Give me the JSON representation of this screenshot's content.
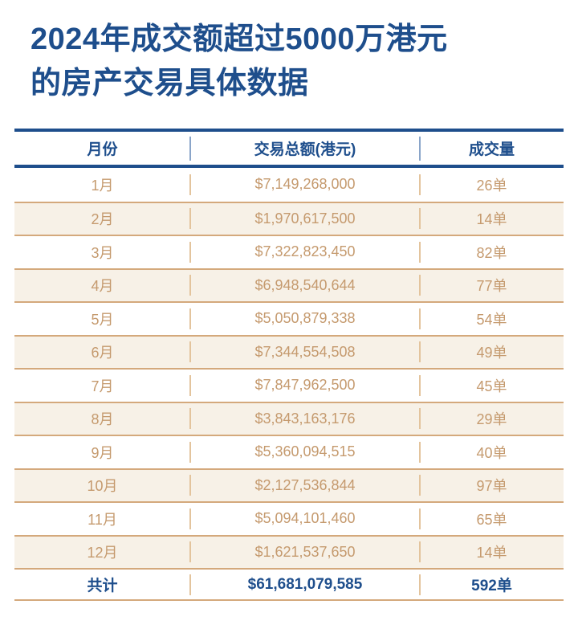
{
  "title": {
    "line1": "2024年成交额超过5000万港元",
    "line2": "的房产交易具体数据",
    "full": "2024年成交额超过5000万港元的房产交易具体数据"
  },
  "chart_data": {
    "type": "table",
    "title": "2024年成交额超过5000万港元的房产交易具体数据",
    "columns": [
      "月份",
      "交易总额(港元)",
      "成交量"
    ],
    "rows": [
      [
        "1月",
        "$7,149,268,000",
        "26单"
      ],
      [
        "2月",
        "$1,970,617,500",
        "14单"
      ],
      [
        "3月",
        "$7,322,823,450",
        "82单"
      ],
      [
        "4月",
        "$6,948,540,644",
        "77单"
      ],
      [
        "5月",
        "$5,050,879,338",
        "54单"
      ],
      [
        "6月",
        "$7,344,554,508",
        "49单"
      ],
      [
        "7月",
        "$7,847,962,500",
        "45单"
      ],
      [
        "8月",
        "$3,843,163,176",
        "29单"
      ],
      [
        "9月",
        "$5,360,094,515",
        "40单"
      ],
      [
        "10月",
        "$2,127,536,844",
        "97单"
      ],
      [
        "11月",
        "$5,094,101,460",
        "65单"
      ],
      [
        "12月",
        "$1,621,537,650",
        "14单"
      ]
    ],
    "total_row": [
      "共计",
      "$61,681,079,585",
      "592单"
    ],
    "months_numeric": [
      1,
      2,
      3,
      4,
      5,
      6,
      7,
      8,
      9,
      10,
      11,
      12
    ],
    "amounts_hkd_numeric": [
      7149268000,
      1970617500,
      7322823450,
      6948540644,
      5050879338,
      7344554508,
      7847962500,
      3843163176,
      5360094515,
      2127536844,
      5094101460,
      1621537650
    ],
    "counts_numeric": [
      26,
      14,
      82,
      77,
      54,
      49,
      45,
      29,
      40,
      97,
      65,
      14
    ],
    "total_amount_hkd_numeric": 61681079585,
    "total_count_numeric": 592
  },
  "colors": {
    "title_blue": "#1e4e8c",
    "header_rule_blue": "#1e4e8c",
    "data_text_tan": "#c59a6e",
    "alt_row_beige": "#f7f1e7",
    "tan_divider": "#d4a97c",
    "tan_separator": "#e3c49d",
    "header_separator_blue": "#8aa5c9",
    "background": "#ffffff"
  }
}
